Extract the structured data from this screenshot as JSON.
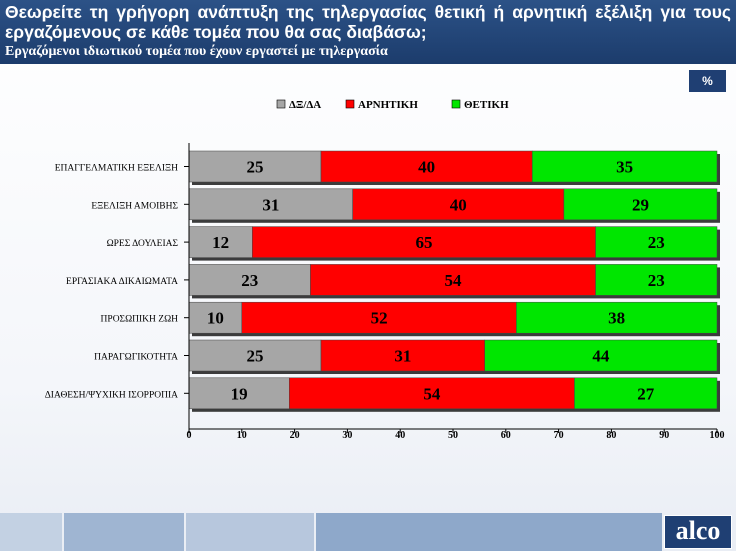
{
  "header": {
    "title": "Θεωρείτε τη γρήγορη ανάπτυξη της τηλεργασίας θετική ή αρνητική εξέλιξη για τους εργαζόμενους σε κάθε τομέα που θα σας διαβάσω;",
    "subtitle": "Εργαζόμενοι ιδιωτικού τομέα που έχουν εργαστεί με τηλεργασία"
  },
  "percent_badge": "%",
  "logo": "alco",
  "colors": {
    "header": "#1f3f73",
    "dk": "#a6a6a6",
    "negative": "#ff0000",
    "positive": "#00e600"
  },
  "chart_data": {
    "type": "bar",
    "orientation": "horizontal",
    "stacked": true,
    "categories": [
      "ΕΠΑΓΓΕΛΜΑΤΙΚΗ ΕΞΕΛΙΞΗ",
      "ΕΞΕΛΙΞΗ ΑΜΟΙΒΗΣ",
      "ΩΡΕΣ ΔΟΥΛΕΙΑΣ",
      "ΕΡΓΑΣΙΑΚΑ ΔΙΚΑΙΩΜΑΤΑ",
      "ΠΡΟΣΩΠΙΚΗ ΖΩΗ",
      "ΠΑΡΑΓΩΓΙΚΟΤΗΤΑ",
      "ΔΙΑΘΕΣΗ/ΨΥΧΙΚΗ ΙΣΟΡΡΟΠΙΑ"
    ],
    "series": [
      {
        "name": "ΔΞ/ΔΑ",
        "color": "#a6a6a6",
        "values": [
          25,
          31,
          12,
          23,
          10,
          25,
          19
        ]
      },
      {
        "name": "ΑΡΝΗΤΙΚΗ",
        "color": "#ff0000",
        "values": [
          40,
          40,
          65,
          54,
          52,
          31,
          54
        ]
      },
      {
        "name": "ΘΕΤΙΚΗ",
        "color": "#00e600",
        "values": [
          35,
          29,
          23,
          23,
          38,
          44,
          27
        ]
      }
    ],
    "xlim": [
      0,
      100
    ],
    "xticks": [
      "0",
      "10",
      "20",
      "30",
      "40",
      "50",
      "60",
      "70",
      "80",
      "90",
      "100"
    ],
    "legend_position": "top",
    "grid": false
  }
}
